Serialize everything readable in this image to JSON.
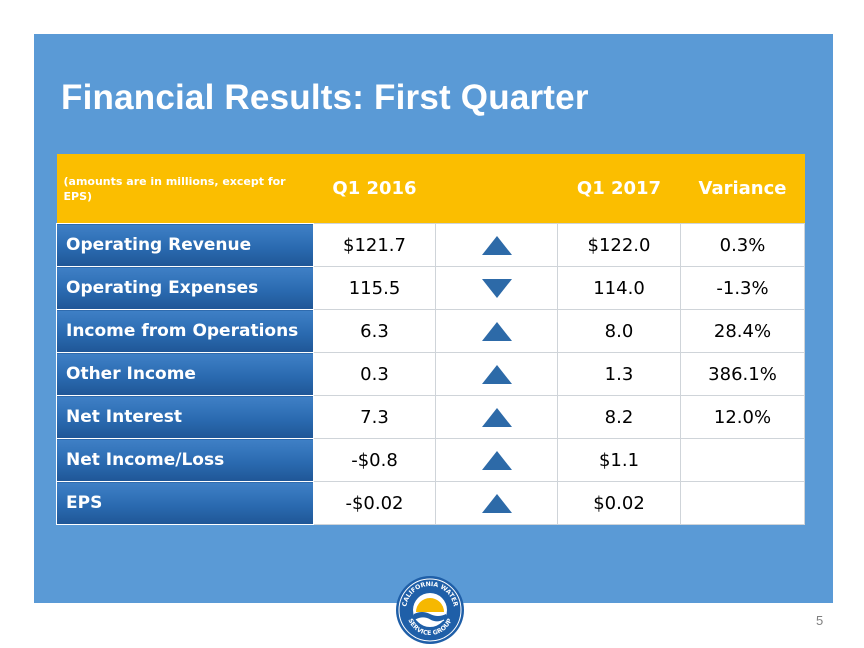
{
  "slide": {
    "title": "Financial Results: First Quarter",
    "page_number": "5",
    "logo": {
      "name": "california-water-service-group-logo",
      "text": "CALIFORNIA WATER SERVICE GROUP"
    }
  },
  "table": {
    "headers": {
      "note": "(amounts are in millions, except for EPS)",
      "q1_2016": "Q1 2016",
      "q1_2017": "Q1 2017",
      "variance": "Variance"
    },
    "rows": [
      {
        "label": "Operating Revenue",
        "q1_2016": "$121.7",
        "trend": "up",
        "q1_2017": "$122.0",
        "variance": "0.3%"
      },
      {
        "label": "Operating Expenses",
        "q1_2016": "115.5",
        "trend": "down",
        "q1_2017": "114.0",
        "variance": "-1.3%"
      },
      {
        "label": "Income from Operations",
        "q1_2016": "6.3",
        "trend": "up",
        "q1_2017": "8.0",
        "variance": "28.4%"
      },
      {
        "label": "Other Income",
        "q1_2016": "0.3",
        "trend": "up",
        "q1_2017": "1.3",
        "variance": "386.1%"
      },
      {
        "label": "Net Interest",
        "q1_2016": "7.3",
        "trend": "up",
        "q1_2017": "8.2",
        "variance": "12.0%"
      },
      {
        "label": "Net Income/Loss",
        "q1_2016": "-$0.8",
        "trend": "up",
        "q1_2017": "$1.1",
        "variance": ""
      },
      {
        "label": "EPS",
        "q1_2016": "-$0.02",
        "trend": "up",
        "q1_2017": "$0.02",
        "variance": ""
      }
    ]
  },
  "colors": {
    "panel": "#5a9ad6",
    "header": "#fbbe00",
    "row_label": "#2a6ab0",
    "arrow": "#2d6aa8"
  }
}
